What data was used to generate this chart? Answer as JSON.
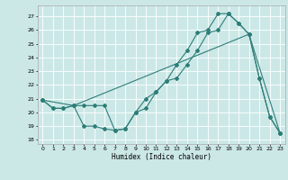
{
  "xlabel": "Humidex (Indice chaleur)",
  "bg_color": "#cbe8e7",
  "grid_color": "#ffffff",
  "line_color": "#2d7d78",
  "xlim": [
    -0.5,
    23.5
  ],
  "ylim": [
    17.7,
    27.8
  ],
  "yticks": [
    18,
    19,
    20,
    21,
    22,
    23,
    24,
    25,
    26,
    27
  ],
  "xticks": [
    0,
    1,
    2,
    3,
    4,
    5,
    6,
    7,
    8,
    9,
    10,
    11,
    12,
    13,
    14,
    15,
    16,
    17,
    18,
    19,
    20,
    21,
    22,
    23
  ],
  "line1_x": [
    0,
    1,
    2,
    3,
    4,
    5,
    6,
    7,
    8,
    9,
    10,
    11,
    12,
    13,
    14,
    15,
    16,
    17,
    18,
    19,
    20,
    21,
    22,
    23
  ],
  "line1_y": [
    20.9,
    20.3,
    20.3,
    20.5,
    20.5,
    20.5,
    20.5,
    18.7,
    18.8,
    20.0,
    20.3,
    21.5,
    22.3,
    22.5,
    23.5,
    24.5,
    25.8,
    26.0,
    27.2,
    26.5,
    25.7,
    22.5,
    19.7,
    18.5
  ],
  "line2_x": [
    0,
    1,
    2,
    3,
    4,
    5,
    6,
    7,
    8,
    9,
    10,
    11,
    12,
    13,
    14,
    15,
    16,
    17,
    18,
    19,
    20,
    21,
    22,
    23
  ],
  "line2_y": [
    20.9,
    20.3,
    20.3,
    20.5,
    19.0,
    19.0,
    18.8,
    18.7,
    18.8,
    20.0,
    21.0,
    21.5,
    22.3,
    23.5,
    24.5,
    25.8,
    26.0,
    27.2,
    27.2,
    26.5,
    25.7,
    22.5,
    19.7,
    18.5
  ],
  "line3_x": [
    0,
    3,
    20,
    23
  ],
  "line3_y": [
    20.9,
    20.5,
    25.7,
    18.5
  ]
}
